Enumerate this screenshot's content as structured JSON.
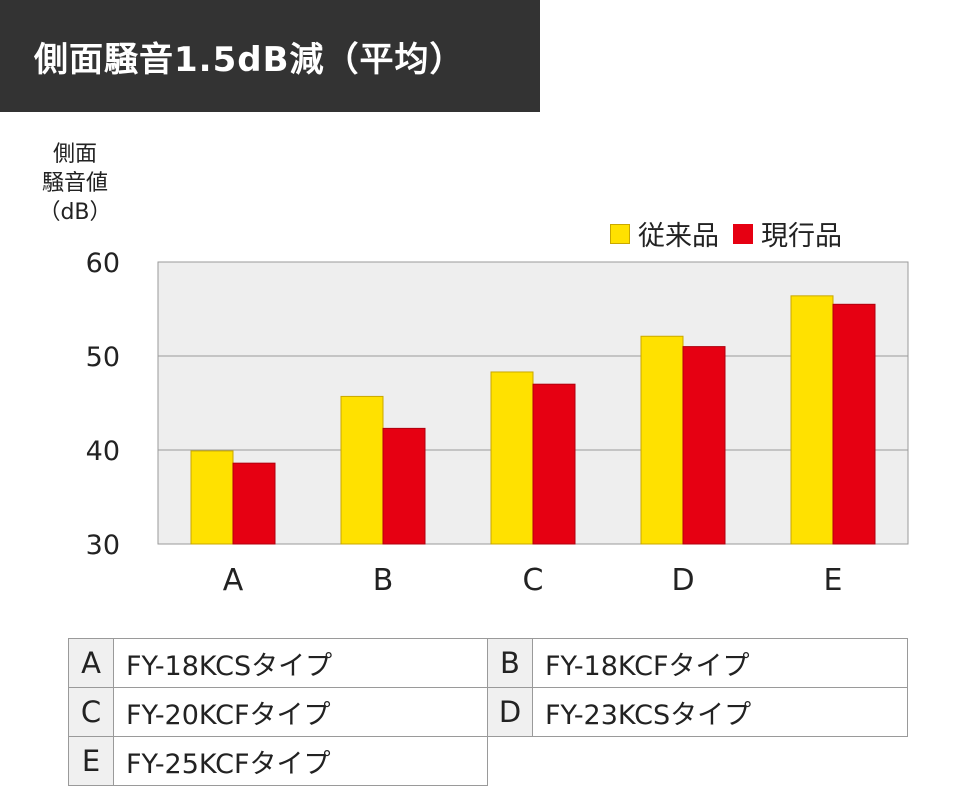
{
  "title": "側面騒音1.5dB減（平均）",
  "chart_data": {
    "type": "bar",
    "ylabel": "側面\n騒音値\n（dB）",
    "ylim": [
      30,
      60
    ],
    "yticks": [
      "30",
      "40",
      "50",
      "60"
    ],
    "categories": [
      "A",
      "B",
      "C",
      "D",
      "E"
    ],
    "series": [
      {
        "name": "従来品",
        "color": "#ffe100",
        "values": [
          39.9,
          45.7,
          48.3,
          52.1,
          56.4
        ]
      },
      {
        "name": "現行品",
        "color": "#e60012",
        "values": [
          38.6,
          42.3,
          47.0,
          51.0,
          55.5
        ]
      }
    ],
    "grid": true,
    "legend": "top-right"
  },
  "models": [
    {
      "key": "A",
      "label": "FY-18KCSタイプ"
    },
    {
      "key": "B",
      "label": "FY-18KCFタイプ"
    },
    {
      "key": "C",
      "label": "FY-20KCFタイプ"
    },
    {
      "key": "D",
      "label": "FY-23KCSタイプ"
    },
    {
      "key": "E",
      "label": "FY-25KCFタイプ"
    }
  ]
}
